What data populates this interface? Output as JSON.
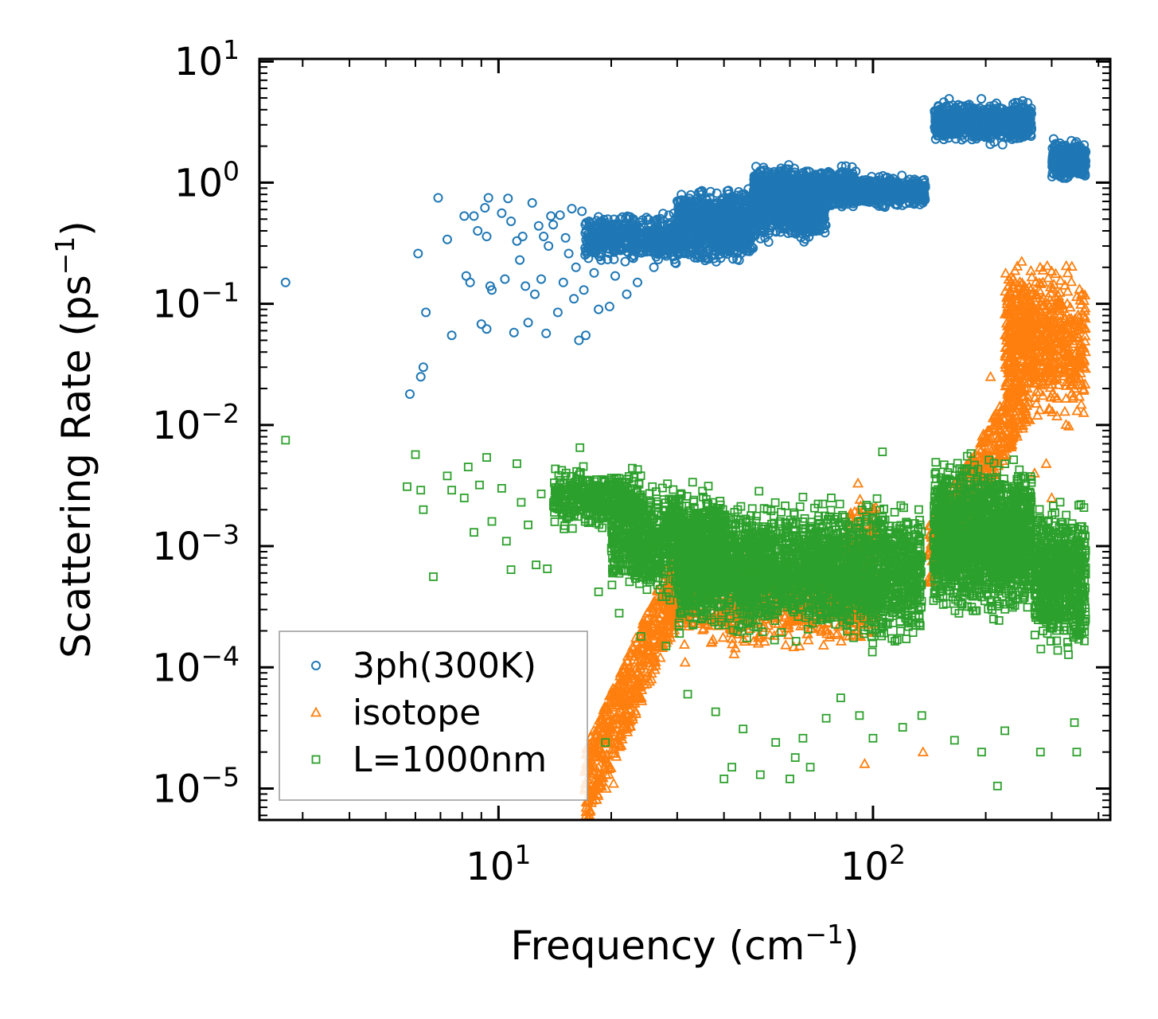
{
  "chart_data": {
    "type": "scatter",
    "xscale": "log",
    "yscale": "log",
    "xlabel": "Frequency (cm",
    "xlabel_exp": "−1",
    "xlabel_end": ")",
    "ylabel": "Scattering Rate (ps",
    "ylabel_exp": "−1",
    "ylabel_end": ")",
    "xlim": [
      2.3,
      430
    ],
    "ylim": [
      5.5e-06,
      10.5
    ],
    "x_ticks": [
      {
        "value": 10,
        "base": "10",
        "exp": "1"
      },
      {
        "value": 100,
        "base": "10",
        "exp": "2"
      }
    ],
    "y_ticks": [
      {
        "value": 10,
        "base": "10",
        "exp": "1"
      },
      {
        "value": 1,
        "base": "10",
        "exp": "0"
      },
      {
        "value": 0.1,
        "base": "10",
        "exp": "−1"
      },
      {
        "value": 0.01,
        "base": "10",
        "exp": "−2"
      },
      {
        "value": 0.001,
        "base": "10",
        "exp": "−3"
      },
      {
        "value": 0.0001,
        "base": "10",
        "exp": "−4"
      },
      {
        "value": 1e-05,
        "base": "10",
        "exp": "−5"
      }
    ],
    "legend_position": "lower-left",
    "series": [
      {
        "name": "3ph(300K)",
        "marker": "circle",
        "color": "#1f77b4",
        "points": [
          [
            2.7,
            0.15
          ],
          [
            5.8,
            0.018
          ],
          [
            6.1,
            0.26
          ],
          [
            6.2,
            0.025
          ],
          [
            6.3,
            0.03
          ],
          [
            6.4,
            0.085
          ],
          [
            6.9,
            0.75
          ],
          [
            7.3,
            0.34
          ],
          [
            7.5,
            0.055
          ],
          [
            8.1,
            0.53
          ],
          [
            8.2,
            0.17
          ],
          [
            8.4,
            0.15
          ],
          [
            8.6,
            0.53
          ],
          [
            8.8,
            0.4
          ],
          [
            9.0,
            0.068
          ],
          [
            9.2,
            0.62
          ],
          [
            9.3,
            0.36
          ],
          [
            9.4,
            0.75
          ],
          [
            9.5,
            0.14
          ],
          [
            9.6,
            0.13
          ],
          [
            9.3,
            0.062
          ],
          [
            10.2,
            0.56
          ],
          [
            10.4,
            0.16
          ],
          [
            10.6,
            0.74
          ],
          [
            10.8,
            0.48
          ],
          [
            11.0,
            0.058
          ],
          [
            11.2,
            0.33
          ],
          [
            11.4,
            0.23
          ],
          [
            11.6,
            0.36
          ],
          [
            11.8,
            0.14
          ],
          [
            12.0,
            0.07
          ],
          [
            12.3,
            0.68
          ],
          [
            12.5,
            0.12
          ],
          [
            12.8,
            0.44
          ],
          [
            13.0,
            0.16
          ],
          [
            13.2,
            0.36
          ],
          [
            13.4,
            0.057
          ],
          [
            13.6,
            0.3
          ],
          [
            13.8,
            0.53
          ],
          [
            14.0,
            0.45
          ],
          [
            14.4,
            0.085
          ],
          [
            14.6,
            0.54
          ],
          [
            14.9,
            0.15
          ],
          [
            15.1,
            0.35
          ],
          [
            15.4,
            0.26
          ],
          [
            15.7,
            0.61
          ],
          [
            15.9,
            0.11
          ],
          [
            16.1,
            0.2
          ],
          [
            16.4,
            0.05
          ],
          [
            16.7,
            0.58
          ],
          [
            16.9,
            0.13
          ],
          [
            17.1,
            0.055
          ],
          [
            17.3,
            0.27
          ],
          [
            17.6,
            0.42
          ],
          [
            18.0,
            0.18
          ],
          [
            18.5,
            0.09
          ],
          [
            19.0,
            0.35
          ],
          [
            19.8,
            0.095
          ],
          [
            20.5,
            0.17
          ],
          [
            21.0,
            0.28
          ],
          [
            22.0,
            0.12
          ],
          [
            23.5,
            0.15
          ],
          [
            26.0,
            0.2
          ]
        ],
        "bands": [
          {
            "x": [
              17,
              48
            ],
            "y": [
              0.2,
              0.6
            ],
            "n": 900
          },
          {
            "x": [
              30,
              75
            ],
            "y": [
              0.3,
              1.0
            ],
            "n": 900
          },
          {
            "x": [
              48,
              90
            ],
            "y": [
              0.55,
              1.5
            ],
            "n": 700
          },
          {
            "x": [
              82,
              138
            ],
            "y": [
              0.6,
              1.2
            ],
            "n": 600
          },
          {
            "x": [
              146,
              265
            ],
            "y": [
              2.0,
              5.0
            ],
            "n": 900
          },
          {
            "x": [
              300,
              370
            ],
            "y": [
              1.0,
              2.4
            ],
            "n": 400
          }
        ]
      },
      {
        "name": "isotope",
        "marker": "triangle",
        "color": "#ff7f0e",
        "points": [
          [
            17.0,
            1e-05
          ],
          [
            17.5,
            1.1e-05
          ],
          [
            18.4,
            1e-05
          ],
          [
            19.4,
            1e-05
          ],
          [
            20.3,
            1.1e-05
          ],
          [
            31.5,
            0.00011
          ],
          [
            37.0,
            0.00016
          ],
          [
            95.0,
            1.6e-05
          ],
          [
            136.0,
            2e-05
          ],
          [
            206.0,
            0.025
          ],
          [
            246.0,
            0.14
          ],
          [
            258.0,
            0.11
          ],
          [
            262.0,
            0.011
          ],
          [
            270.0,
            0.004
          ],
          [
            275.0,
            0.012
          ],
          [
            290.0,
            0.0048
          ],
          [
            300.0,
            0.0025
          ],
          [
            345.0,
            0.02
          ],
          [
            355.0,
            0.03
          ]
        ],
        "bands": [
          {
            "x": [
              17,
              31
            ],
            "y": [
              1e-05,
              0.0006
            ],
            "n": 600,
            "trend": "rising"
          },
          {
            "x": [
              28,
              95
            ],
            "y": [
              0.00012,
              0.001
            ],
            "n": 700
          },
          {
            "x": [
              85,
              102
            ],
            "y": [
              0.0001,
              0.004
            ],
            "n": 250
          },
          {
            "x": [
              140,
              260
            ],
            "y": [
              0.0008,
              0.02
            ],
            "n": 500,
            "trend": "rising"
          },
          {
            "x": [
              225,
              270
            ],
            "y": [
              0.01,
              0.3
            ],
            "n": 350
          },
          {
            "x": [
              270,
              370
            ],
            "y": [
              0.008,
              0.3
            ],
            "n": 400
          }
        ]
      },
      {
        "name": "L=1000nm",
        "marker": "square",
        "color": "#2ca02c",
        "points": [
          [
            2.7,
            0.0075
          ],
          [
            5.7,
            0.0031
          ],
          [
            6.0,
            0.0057
          ],
          [
            6.2,
            0.0029
          ],
          [
            6.3,
            0.002
          ],
          [
            6.7,
            0.00056
          ],
          [
            7.3,
            0.0038
          ],
          [
            7.5,
            0.0029
          ],
          [
            8.1,
            0.0025
          ],
          [
            8.3,
            0.0045
          ],
          [
            8.6,
            0.0013
          ],
          [
            8.9,
            0.0032
          ],
          [
            9.3,
            0.0054
          ],
          [
            9.6,
            0.0016
          ],
          [
            10.2,
            0.003
          ],
          [
            10.5,
            0.0011
          ],
          [
            10.8,
            0.00064
          ],
          [
            11.2,
            0.0048
          ],
          [
            11.5,
            0.0023
          ],
          [
            12.0,
            0.0015
          ],
          [
            12.6,
            0.0007
          ],
          [
            13.0,
            0.0027
          ],
          [
            13.5,
            0.00065
          ],
          [
            14.1,
            0.0019
          ],
          [
            16.5,
            0.0065
          ],
          [
            17.2,
            0.0035
          ],
          [
            18.5,
            0.00042
          ],
          [
            19.3,
            2.4e-05
          ],
          [
            21.0,
            0.00028
          ],
          [
            24.0,
            0.00018
          ],
          [
            28.0,
            0.00015
          ],
          [
            32.0,
            6e-05
          ],
          [
            38.0,
            4.3e-05
          ],
          [
            40.0,
            1.2e-05
          ],
          [
            42.0,
            1.5e-05
          ],
          [
            45.0,
            3.1e-05
          ],
          [
            50.0,
            1.3e-05
          ],
          [
            55.0,
            2.4e-05
          ],
          [
            60.0,
            1.2e-05
          ],
          [
            62.0,
            1.8e-05
          ],
          [
            65.0,
            2.6e-05
          ],
          [
            68.0,
            1.5e-05
          ],
          [
            75.0,
            3.8e-05
          ],
          [
            82.0,
            5.6e-05
          ],
          [
            92.0,
            4e-05
          ],
          [
            100.0,
            2.6e-05
          ],
          [
            106.0,
            0.006
          ],
          [
            120.0,
            3.2e-05
          ],
          [
            135.0,
            4e-05
          ],
          [
            165.0,
            2.5e-05
          ],
          [
            195.0,
            2e-05
          ],
          [
            215.0,
            1.05e-05
          ],
          [
            225.0,
            3e-05
          ],
          [
            280.0,
            2e-05
          ],
          [
            345.0,
            3.5e-05
          ],
          [
            350.0,
            2e-05
          ]
        ],
        "bands": [
          {
            "x": [
              14,
              24
            ],
            "y": [
              0.0012,
              0.005
            ],
            "n": 400
          },
          {
            "x": [
              20,
              40
            ],
            "y": [
              0.0003,
              0.004
            ],
            "n": 900
          },
          {
            "x": [
              30,
              85
            ],
            "y": [
              0.00015,
              0.003
            ],
            "n": 1800
          },
          {
            "x": [
              85,
              135
            ],
            "y": [
              0.00012,
              0.003
            ],
            "n": 800
          },
          {
            "x": [
              145,
              265
            ],
            "y": [
              0.0002,
              0.007
            ],
            "n": 1600
          },
          {
            "x": [
              270,
              370
            ],
            "y": [
              0.0001,
              0.003
            ],
            "n": 700
          }
        ]
      }
    ]
  }
}
